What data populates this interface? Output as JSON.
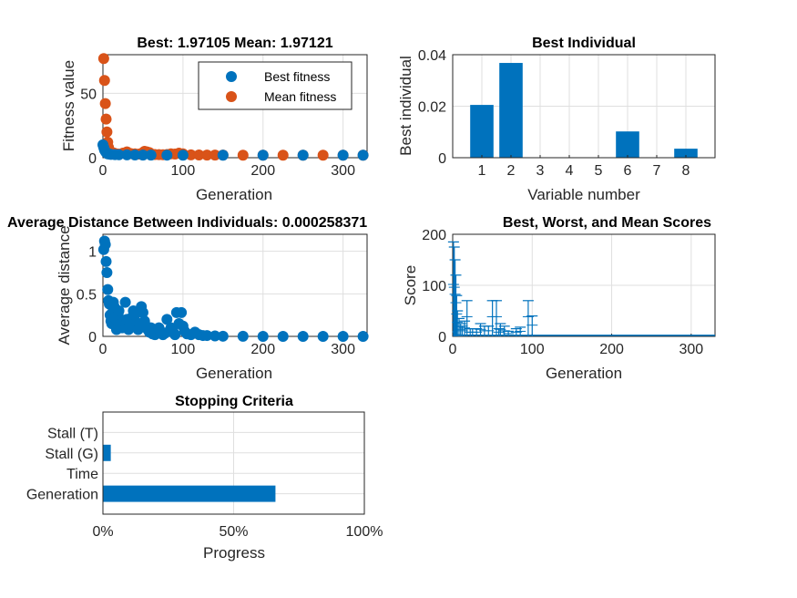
{
  "colors": {
    "blue": "#0072BD",
    "orange": "#D95319",
    "axis": "#262626",
    "grid": "#dfdfdf"
  },
  "chart_data": [
    {
      "id": "fitness",
      "type": "scatter",
      "title": "Best: 1.97105 Mean: 1.97121",
      "xlabel": "Generation",
      "ylabel": "Fitness value",
      "xlim": [
        0,
        330
      ],
      "ylim": [
        0,
        80
      ],
      "xticks": [
        0,
        100,
        200,
        300
      ],
      "yticks": [
        0,
        50
      ],
      "grid": true,
      "legend": "top-right",
      "series": [
        {
          "name": "Best fitness",
          "x": [
            0,
            1,
            2,
            3,
            4,
            5,
            6,
            8,
            10,
            15,
            20,
            30,
            40,
            50,
            60,
            80,
            100,
            150,
            200,
            250,
            300,
            325
          ],
          "y": [
            10,
            8,
            6,
            5,
            4,
            3.5,
            3,
            2.8,
            2.6,
            2.4,
            2.3,
            2.2,
            2.1,
            2.05,
            2.0,
            1.99,
            1.98,
            1.975,
            1.972,
            1.971,
            1.971,
            1.971
          ]
        },
        {
          "name": "Mean fitness",
          "x": [
            1,
            2,
            3,
            4,
            5,
            6,
            7,
            8,
            9,
            10,
            12,
            14,
            16,
            18,
            20,
            25,
            30,
            35,
            40,
            45,
            50,
            52,
            55,
            58,
            60,
            65,
            70,
            75,
            80,
            85,
            90,
            95,
            100,
            110,
            120,
            130,
            140,
            150,
            175,
            200,
            225,
            250,
            275,
            300,
            325
          ],
          "y": [
            77,
            60,
            42,
            30,
            20,
            12,
            8,
            6,
            5,
            4,
            3,
            3.5,
            3,
            2.8,
            2.7,
            3.5,
            4.5,
            3.2,
            3,
            2.8,
            4,
            5,
            4.5,
            4,
            3,
            2.5,
            2.4,
            2.3,
            2.5,
            3,
            2.8,
            3.5,
            3,
            2.2,
            2.1,
            2.05,
            2.0,
            2.0,
            1.98,
            1.975,
            1.972,
            1.971,
            1.9712,
            1.9712,
            1.97121
          ]
        }
      ]
    },
    {
      "id": "bestind",
      "type": "bar",
      "title": "Best Individual",
      "xlabel": "Variable number",
      "ylabel": "Best individual",
      "categories": [
        "1",
        "2",
        "3",
        "4",
        "5",
        "6",
        "7",
        "8"
      ],
      "values": [
        0.0205,
        0.0368,
        0,
        0,
        0,
        0.0102,
        0,
        0.0035
      ],
      "ylim": [
        0,
        0.04
      ],
      "yticks": [
        "0",
        "0.02",
        "0.04"
      ],
      "grid": true
    },
    {
      "id": "distance",
      "type": "scatter",
      "title": "Average Distance Between Individuals: 0.000258371",
      "xlabel": "Generation",
      "ylabel": "Average distance",
      "xlim": [
        0,
        330
      ],
      "ylim": [
        0,
        1.2
      ],
      "xticks": [
        0,
        100,
        200,
        300
      ],
      "yticks": [
        "0",
        "0.5",
        "1"
      ],
      "grid": true,
      "series": [
        {
          "x": [
            1,
            2,
            3,
            4,
            5,
            6,
            7,
            8,
            9,
            10,
            11,
            12,
            13,
            14,
            15,
            16,
            17,
            18,
            19,
            20,
            22,
            24,
            26,
            28,
            30,
            32,
            34,
            36,
            38,
            40,
            42,
            44,
            46,
            48,
            50,
            52,
            54,
            56,
            58,
            60,
            62,
            65,
            68,
            70,
            72,
            75,
            78,
            80,
            85,
            88,
            90,
            92,
            95,
            98,
            100,
            102,
            105,
            110,
            115,
            120,
            125,
            130,
            140,
            150,
            175,
            200,
            225,
            250,
            275,
            300,
            325
          ],
          "y": [
            1.02,
            1.12,
            1.08,
            0.88,
            0.75,
            0.55,
            0.42,
            0.38,
            0.25,
            0.18,
            0.15,
            0.28,
            0.4,
            0.35,
            0.22,
            0.12,
            0.08,
            0.18,
            0.25,
            0.3,
            0.15,
            0.1,
            0.18,
            0.4,
            0.2,
            0.08,
            0.15,
            0.22,
            0.3,
            0.25,
            0.12,
            0.08,
            0.15,
            0.35,
            0.28,
            0.18,
            0.12,
            0.08,
            0.05,
            0.1,
            0.03,
            0.02,
            0.05,
            0.1,
            0.05,
            0.02,
            0.04,
            0.2,
            0.1,
            0.05,
            0.02,
            0.28,
            0.15,
            0.28,
            0.12,
            0.06,
            0.03,
            0.02,
            0.05,
            0.02,
            0.01,
            0.01,
            0.005,
            0.002,
            0.001,
            0.0005,
            0.0003,
            0.0003,
            0.00026,
            0.00026,
            0.000258
          ]
        }
      ]
    },
    {
      "id": "scores",
      "type": "line",
      "title": "Best, Worst, and Mean Scores",
      "xlabel": "Generation",
      "ylabel": "Score",
      "xlim": [
        0,
        330
      ],
      "ylim": [
        0,
        200
      ],
      "xticks": [
        0,
        100,
        200,
        300
      ],
      "yticks": [
        0,
        100,
        200
      ],
      "grid": true,
      "series": [
        {
          "name": "",
          "x": [
            0,
            1,
            2,
            3,
            4,
            5,
            6,
            8,
            10,
            15,
            20,
            30,
            40,
            50,
            60,
            80,
            100,
            150,
            200,
            250,
            300,
            330
          ],
          "y": [
            10,
            8,
            6,
            5,
            4,
            3.5,
            3,
            2.8,
            2.6,
            2.4,
            2.3,
            2.2,
            2.1,
            2.05,
            2.0,
            1.99,
            1.98,
            1.975,
            1.972,
            1.971,
            1.971,
            1.971
          ]
        }
      ],
      "whiskers": {
        "x": [
          1,
          2,
          3,
          4,
          5,
          6,
          8,
          10,
          12,
          15,
          18,
          22,
          25,
          30,
          35,
          40,
          45,
          50,
          55,
          58,
          60,
          65,
          70,
          80,
          85,
          95,
          100
        ],
        "worst": [
          185,
          175,
          150,
          120,
          80,
          50,
          35,
          25,
          20,
          30,
          70,
          15,
          15,
          15,
          25,
          20,
          20,
          70,
          70,
          15,
          25,
          20,
          10,
          15,
          18,
          70,
          40
        ]
      }
    },
    {
      "id": "stopping",
      "type": "bar",
      "orientation": "horizontal",
      "title": "Stopping Criteria",
      "xlabel": "Progress",
      "categories": [
        "Generation",
        "Time",
        "Stall (G)",
        "Stall (T)"
      ],
      "values": [
        0.66,
        0,
        0.03,
        0
      ],
      "xticks": [
        "0%",
        "50%",
        "100%"
      ],
      "xlim": [
        0,
        1
      ],
      "grid": true
    }
  ]
}
